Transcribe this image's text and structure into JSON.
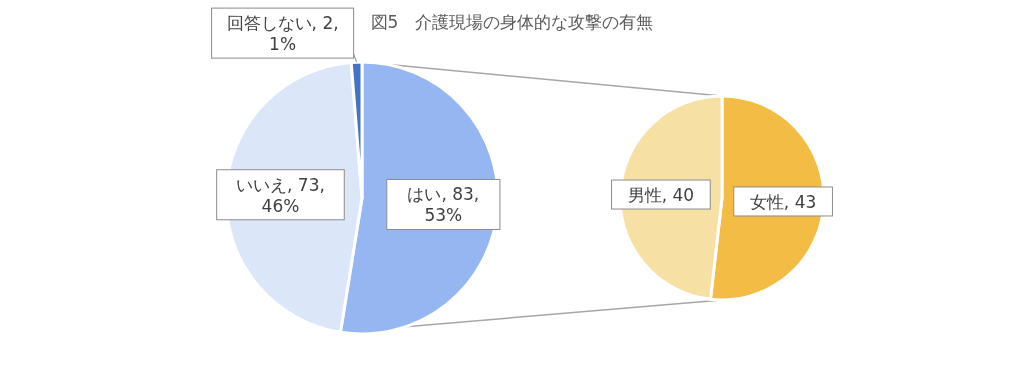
{
  "chart_data": [
    {
      "type": "pie",
      "title": "図5　介護現場の身体的な攻撃の有無",
      "categories": [
        "はい",
        "いいえ",
        "回答しない"
      ],
      "values": [
        83,
        73,
        2
      ],
      "colors": [
        "#95b6f0",
        "#dbe6f8",
        "#4472c4"
      ],
      "value_labels": [
        "83, 53%",
        "73, 46%",
        "2, 1%"
      ],
      "legend": false
    },
    {
      "type": "pie",
      "categories": [
        "女性",
        "男性"
      ],
      "values": [
        43,
        40
      ],
      "colors": [
        "#f2bc45",
        "#f7e0a3"
      ],
      "value_labels": [
        "43",
        "40"
      ],
      "legend": false
    }
  ]
}
